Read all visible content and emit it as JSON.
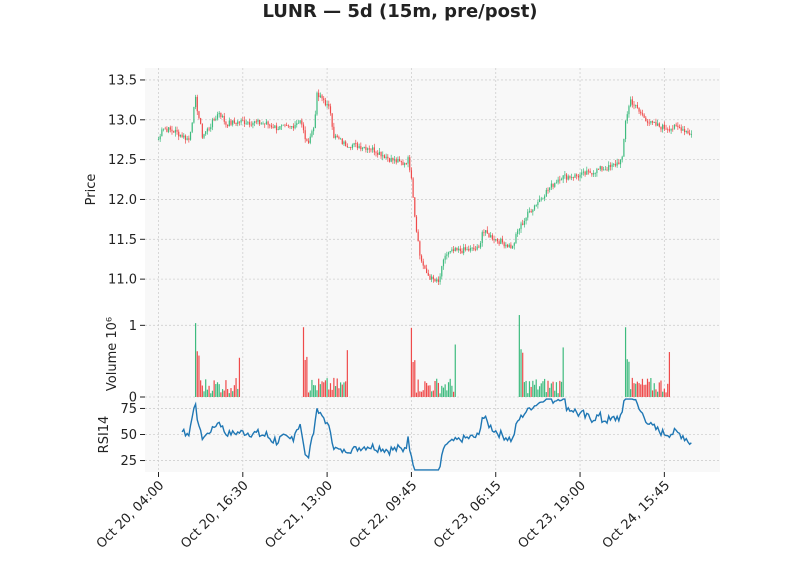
{
  "chart_data": {
    "type": "candlestick",
    "title": "LUNR — 5d (15m, pre/post)",
    "colors": {
      "up": "#3dbb7e",
      "down": "#ef4a4a",
      "rsi": "#1f77b4",
      "panel_bg": "#f8f8f8",
      "grid": "#cfcfcf"
    },
    "grid": true,
    "x_tick_labels": [
      "Oct 20, 04:00",
      "Oct 20, 16:30",
      "Oct 21, 13:00",
      "Oct 22, 09:45",
      "Oct 23, 06:15",
      "Oct 23, 19:00",
      "Oct 24, 15:45"
    ],
    "x_range_bars": [
      -8,
      333
    ],
    "x_tick_bars": [
      0,
      50,
      100,
      150,
      200,
      250,
      300
    ],
    "price": {
      "ylabel": "Price",
      "ylim": [
        10.6,
        13.65
      ],
      "ticks": [
        "11.0",
        "11.5",
        "12.0",
        "12.5",
        "13.0",
        "13.5"
      ],
      "tick_values": [
        11.0,
        11.5,
        12.0,
        12.5,
        13.0,
        13.5
      ],
      "anchors": [
        [
          0,
          12.75
        ],
        [
          2,
          12.9
        ],
        [
          10,
          12.85
        ],
        [
          18,
          12.75
        ],
        [
          22,
          13.25
        ],
        [
          26,
          12.8
        ],
        [
          30,
          12.9
        ],
        [
          36,
          13.1
        ],
        [
          40,
          12.95
        ],
        [
          50,
          12.98
        ],
        [
          64,
          12.95
        ],
        [
          70,
          12.9
        ],
        [
          78,
          12.9
        ],
        [
          84,
          13.0
        ],
        [
          88,
          12.7
        ],
        [
          92,
          12.9
        ],
        [
          94,
          13.3
        ],
        [
          98,
          13.25
        ],
        [
          102,
          13.1
        ],
        [
          104,
          12.8
        ],
        [
          110,
          12.7
        ],
        [
          125,
          12.65
        ],
        [
          130,
          12.6
        ],
        [
          138,
          12.5
        ],
        [
          145,
          12.45
        ],
        [
          148,
          12.5
        ],
        [
          150,
          12.3
        ],
        [
          152,
          11.8
        ],
        [
          155,
          11.3
        ],
        [
          158,
          11.1
        ],
        [
          162,
          11.0
        ],
        [
          166,
          10.95
        ],
        [
          170,
          11.3
        ],
        [
          175,
          11.35
        ],
        [
          190,
          11.38
        ],
        [
          192,
          11.6
        ],
        [
          200,
          11.5
        ],
        [
          210,
          11.4
        ],
        [
          213,
          11.6
        ],
        [
          220,
          11.85
        ],
        [
          230,
          12.1
        ],
        [
          238,
          12.28
        ],
        [
          250,
          12.3
        ],
        [
          262,
          12.38
        ],
        [
          268,
          12.4
        ],
        [
          275,
          12.5
        ],
        [
          277,
          13.0
        ],
        [
          280,
          13.25
        ],
        [
          285,
          13.1
        ],
        [
          292,
          12.95
        ],
        [
          300,
          12.9
        ],
        [
          310,
          12.9
        ],
        [
          316,
          12.82
        ]
      ],
      "seed": 7
    },
    "volume": {
      "ylabel": "Volume  10⁶",
      "ylim": [
        0,
        1.2
      ],
      "ticks": [
        "0",
        "1"
      ],
      "tick_values": [
        0,
        1
      ],
      "sessions": [
        [
          22,
          48
        ],
        [
          86,
          112
        ],
        [
          150,
          176
        ],
        [
          214,
          240
        ],
        [
          277,
          303
        ]
      ]
    },
    "rsi": {
      "ylabel": "RSI14",
      "ylim": [
        14,
        86
      ],
      "ticks": [
        "25",
        "50",
        "75"
      ],
      "tick_values": [
        25,
        50,
        75
      ],
      "period": 14
    }
  }
}
